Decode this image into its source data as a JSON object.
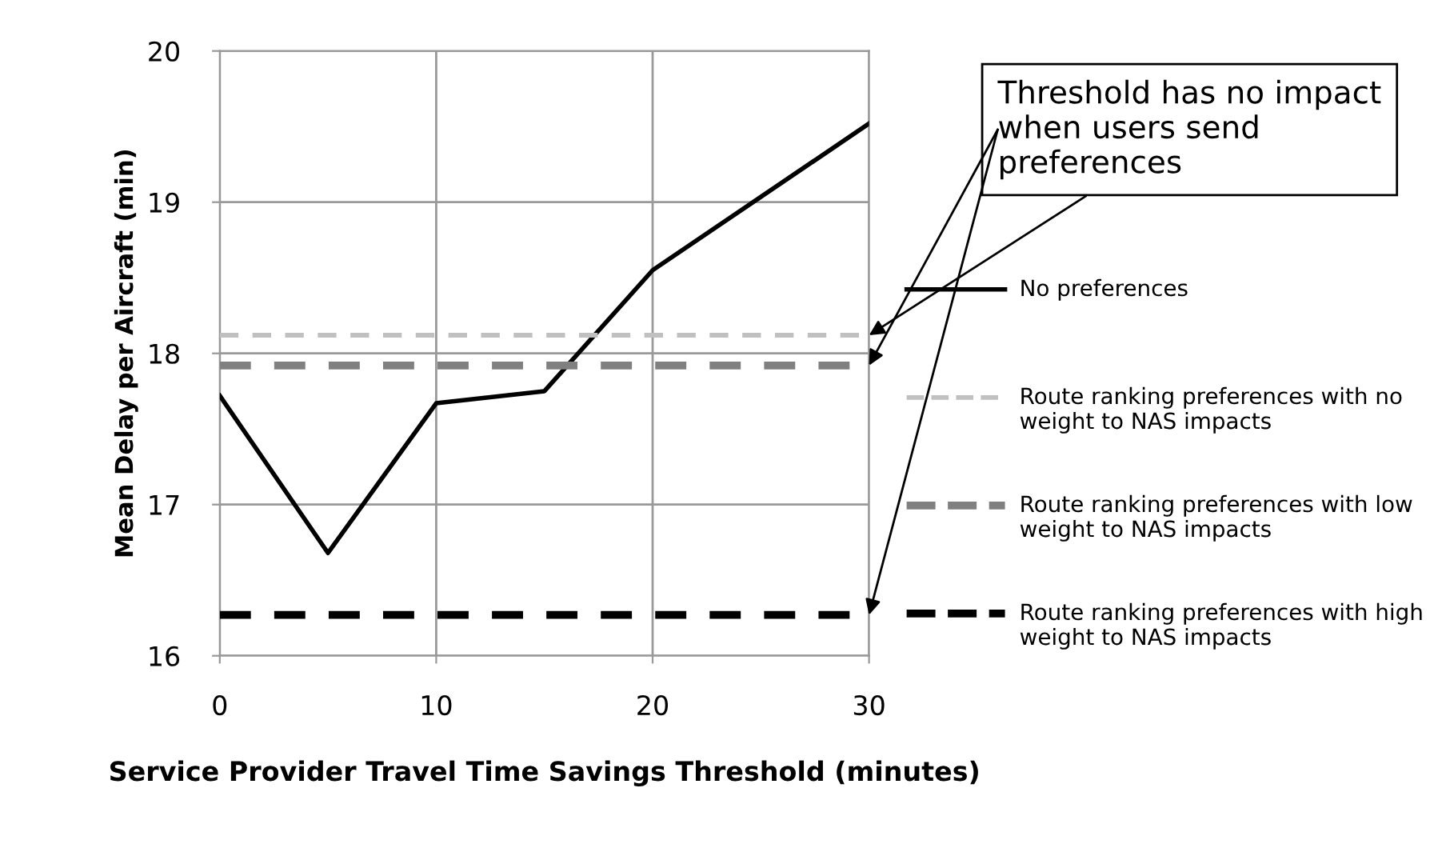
{
  "chart_data": {
    "type": "line",
    "xlabel": "Service Provider Travel Time Savings Threshold (minutes)",
    "ylabel": "Mean Delay per Aircraft (min)",
    "xlim": [
      0,
      30
    ],
    "xticks": [
      0,
      10,
      20,
      30
    ],
    "ylim": [
      16,
      20
    ],
    "yticks": [
      16,
      17,
      18,
      19,
      20
    ],
    "grid": true,
    "legend": "right",
    "marker": "none",
    "series": [
      {
        "name": "No preferences",
        "color": "#000000",
        "line_style": "solid",
        "x": [
          0,
          5,
          10,
          15,
          20,
          30
        ],
        "values": [
          17.72,
          16.68,
          17.67,
          17.75,
          18.55,
          19.52
        ]
      },
      {
        "name": "Route ranking preferences with no weight to NAS impacts",
        "color": "#c0c0c0",
        "line_style": "dashed",
        "x": [
          0,
          30
        ],
        "values": [
          18.12,
          18.12
        ]
      },
      {
        "name": "Route ranking preferences with low weight to NAS impacts",
        "color": "#808080",
        "line_style": "dashed",
        "x": [
          0,
          30
        ],
        "values": [
          17.92,
          17.92
        ]
      },
      {
        "name": "Route ranking preferences with high weight to NAS impacts",
        "color": "#000000",
        "line_style": "dashed",
        "x": [
          0,
          30
        ],
        "values": [
          16.27,
          16.27
        ]
      }
    ],
    "annotations": [
      "Threshold has no impact when users send preferences"
    ]
  }
}
